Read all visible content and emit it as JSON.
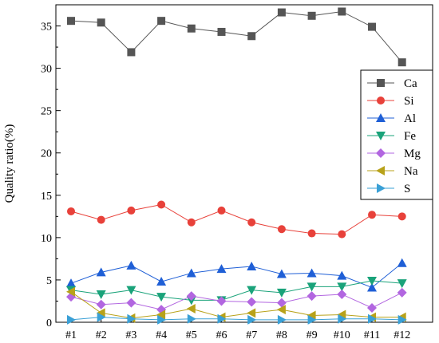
{
  "chart_data": {
    "type": "line",
    "title": "",
    "xlabel": "",
    "ylabel": "Quality ratio(%)",
    "ylim": [
      0,
      37.5
    ],
    "yticks": [
      0,
      5,
      10,
      15,
      20,
      25,
      30,
      35
    ],
    "categories": [
      "#1",
      "#2",
      "#3",
      "#4",
      "#5",
      "#6",
      "#7",
      "#8",
      "#9",
      "#10",
      "#11",
      "#12"
    ],
    "grid": false,
    "legend_position": "right",
    "series": [
      {
        "name": "Ca",
        "color": "#555555",
        "marker": "square",
        "values": [
          35.6,
          35.4,
          31.9,
          35.6,
          34.7,
          34.3,
          33.8,
          36.6,
          36.2,
          36.7,
          34.9,
          30.7
        ]
      },
      {
        "name": "Si",
        "color": "#e8413a",
        "marker": "circle",
        "values": [
          13.1,
          12.1,
          13.2,
          13.9,
          11.8,
          13.2,
          11.8,
          11.0,
          10.5,
          10.4,
          12.7,
          12.5
        ]
      },
      {
        "name": "Al",
        "color": "#1f5fd6",
        "marker": "triangle-up",
        "values": [
          4.6,
          5.9,
          6.7,
          4.8,
          5.8,
          6.3,
          6.6,
          5.7,
          5.8,
          5.5,
          4.1,
          7.0
        ]
      },
      {
        "name": "Fe",
        "color": "#1aa37a",
        "marker": "triangle-down",
        "values": [
          3.8,
          3.3,
          3.8,
          3.0,
          2.6,
          2.6,
          3.8,
          3.5,
          4.2,
          4.2,
          4.9,
          4.6
        ]
      },
      {
        "name": "Mg",
        "color": "#b266e0",
        "marker": "diamond",
        "values": [
          3.0,
          2.1,
          2.3,
          1.5,
          3.1,
          2.5,
          2.4,
          2.3,
          3.1,
          3.3,
          1.7,
          3.5
        ]
      },
      {
        "name": "Na",
        "color": "#b8a21a",
        "marker": "triangle-left",
        "values": [
          3.6,
          1.1,
          0.5,
          0.9,
          1.6,
          0.6,
          1.1,
          1.5,
          0.8,
          0.9,
          0.6,
          0.6
        ]
      },
      {
        "name": "S",
        "color": "#3aa0d6",
        "marker": "triangle-right",
        "values": [
          0.3,
          0.6,
          0.4,
          0.3,
          0.4,
          0.4,
          0.3,
          0.3,
          0.3,
          0.4,
          0.4,
          0.3
        ]
      }
    ]
  }
}
